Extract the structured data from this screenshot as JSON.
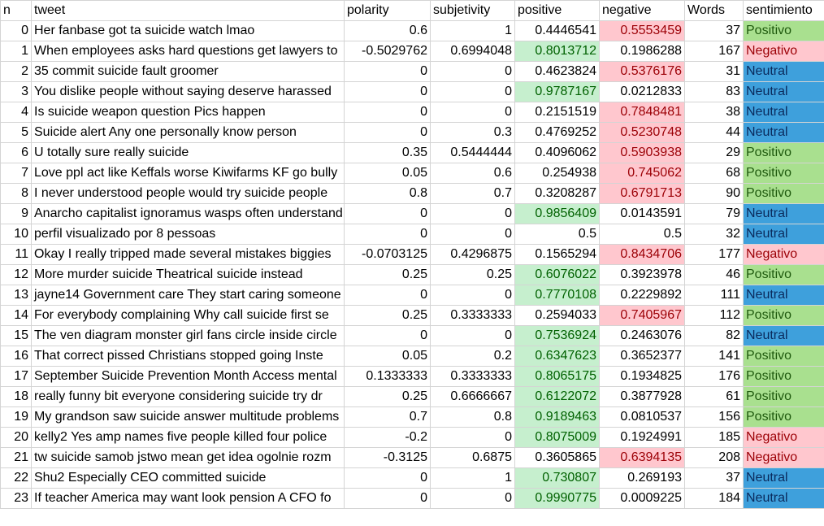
{
  "headers": [
    "n",
    "tweet",
    "polarity",
    "subjetivity",
    "positive",
    "negative",
    "Words",
    "sentimiento"
  ],
  "rows": [
    [
      "0",
      "Her fanbase got ta suicide watch lmao",
      "0.6",
      "1",
      "0.4446541",
      "0.5553459",
      "37",
      "Positivo"
    ],
    [
      "1",
      "When employees asks hard questions get lawyers to",
      "-0.5029762",
      "0.6994048",
      "0.8013712",
      "0.1986288",
      "167",
      "Negativo"
    ],
    [
      "2",
      "35 commit suicide fault groomer",
      "0",
      "0",
      "0.4623824",
      "0.5376176",
      "31",
      "Neutral"
    ],
    [
      "3",
      "You dislike people without saying deserve harassed",
      "0",
      "0",
      "0.9787167",
      "0.0212833",
      "83",
      "Neutral"
    ],
    [
      "4",
      "Is suicide weapon question Pics happen",
      "0",
      "0",
      "0.2151519",
      "0.7848481",
      "38",
      "Neutral"
    ],
    [
      "5",
      "Suicide alert Any one personally know person",
      "0",
      "0.3",
      "0.4769252",
      "0.5230748",
      "44",
      "Neutral"
    ],
    [
      "6",
      "U totally sure really suicide",
      "0.35",
      "0.5444444",
      "0.4096062",
      "0.5903938",
      "29",
      "Positivo"
    ],
    [
      "7",
      "Love ppl act like Keffals worse Kiwifarms KF go bully",
      "0.05",
      "0.6",
      "0.254938",
      "0.745062",
      "68",
      "Positivo"
    ],
    [
      "8",
      "I never understood people would try suicide people",
      "0.8",
      "0.7",
      "0.3208287",
      "0.6791713",
      "90",
      "Positivo"
    ],
    [
      "9",
      "Anarcho capitalist ignoramus wasps often understand",
      "0",
      "0",
      "0.9856409",
      "0.0143591",
      "79",
      "Neutral"
    ],
    [
      "10",
      "perfil visualizado por 8 pessoas",
      "0",
      "0",
      "0.5",
      "0.5",
      "32",
      "Neutral"
    ],
    [
      "11",
      "Okay I really tripped made several mistakes biggies",
      "-0.0703125",
      "0.4296875",
      "0.1565294",
      "0.8434706",
      "177",
      "Negativo"
    ],
    [
      "12",
      "More murder suicide Theatrical suicide instead",
      "0.25",
      "0.25",
      "0.6076022",
      "0.3923978",
      "46",
      "Positivo"
    ],
    [
      "13",
      "jayne14 Government care They start caring someone",
      "0",
      "0",
      "0.7770108",
      "0.2229892",
      "111",
      "Neutral"
    ],
    [
      "14",
      "For everybody complaining Why call suicide first se",
      "0.25",
      "0.3333333",
      "0.2594033",
      "0.7405967",
      "112",
      "Positivo"
    ],
    [
      "15",
      "The ven diagram monster girl fans circle inside circle",
      "0",
      "0",
      "0.7536924",
      "0.2463076",
      "82",
      "Neutral"
    ],
    [
      "16",
      "That correct pissed Christians stopped going Inste",
      "0.05",
      "0.2",
      "0.6347623",
      "0.3652377",
      "141",
      "Positivo"
    ],
    [
      "17",
      "September Suicide Prevention Month Access mental",
      "0.1333333",
      "0.3333333",
      "0.8065175",
      "0.1934825",
      "176",
      "Positivo"
    ],
    [
      "18",
      "really funny bit everyone considering suicide try dr",
      "0.25",
      "0.6666667",
      "0.6122072",
      "0.3877928",
      "61",
      "Positivo"
    ],
    [
      "19",
      "My grandson saw suicide answer multitude problems",
      "0.7",
      "0.8",
      "0.9189463",
      "0.0810537",
      "156",
      "Positivo"
    ],
    [
      "20",
      "kelly2 Yes amp names five people killed four police",
      "-0.2",
      "0",
      "0.8075009",
      "0.1924991",
      "185",
      "Negativo"
    ],
    [
      "21",
      "tw suicide samob jstwo mean get idea ogolnie rozm",
      "-0.3125",
      "0.6875",
      "0.3605865",
      "0.6394135",
      "208",
      "Negativo"
    ],
    [
      "22",
      "Shu2 Especially CEO committed suicide",
      "0",
      "1",
      "0.730807",
      "0.269193",
      "37",
      "Neutral"
    ],
    [
      "23",
      "If teacher America may want look pension A CFO fo",
      "0",
      "0",
      "0.9990775",
      "0.0009225",
      "184",
      "Neutral"
    ]
  ],
  "colors": {
    "positive_fill": "#c6efce",
    "negative_fill": "#ffc7ce",
    "positivo_fill": "#a9e08f",
    "negativo_fill": "#ffc7ce",
    "neutral_fill": "#3ea0dc"
  }
}
